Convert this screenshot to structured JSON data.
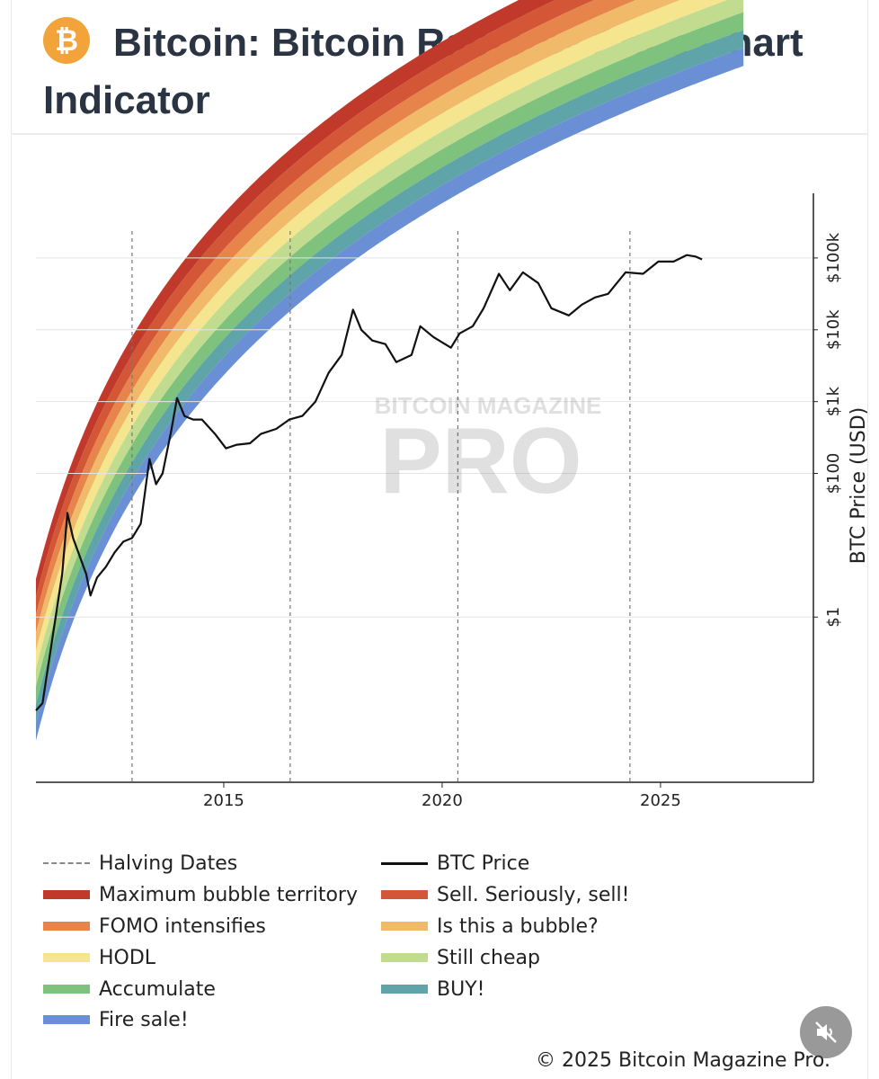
{
  "header": {
    "title": "Bitcoin: Bitcoin Rainbow Price Chart Indicator",
    "logo_icon": "bitcoin-logo-icon"
  },
  "chart_data": {
    "type": "line",
    "title": "Bitcoin Rainbow Price Chart Indicator",
    "xlabel": "",
    "ylabel": "BTC Price (USD)",
    "y_scale": "log",
    "xlim": [
      2010.7,
      2028.5
    ],
    "ylim_log10": [
      -2.3,
      5.9
    ],
    "x_ticks": [
      {
        "value": 2015,
        "label": "2015"
      },
      {
        "value": 2020,
        "label": "2020"
      },
      {
        "value": 2025,
        "label": "2025"
      }
    ],
    "y_ticks": [
      {
        "log10": 0,
        "label": "$1"
      },
      {
        "log10": 2,
        "label": "$100"
      },
      {
        "log10": 3,
        "label": "$1k"
      },
      {
        "log10": 4,
        "label": "$10k"
      },
      {
        "log10": 5,
        "label": "$100k"
      }
    ],
    "halving_dates": [
      2012.9,
      2016.52,
      2020.36,
      2024.3
    ],
    "bands": [
      {
        "name": "Maximum bubble territory",
        "color": "#c0392b"
      },
      {
        "name": "Sell. Seriously, sell!",
        "color": "#d35637"
      },
      {
        "name": "FOMO intensifies",
        "color": "#e6844b"
      },
      {
        "name": "Is this a bubble?",
        "color": "#f0ba6a"
      },
      {
        "name": "HODL",
        "color": "#f5e58f"
      },
      {
        "name": "Still cheap",
        "color": "#c2dc8f"
      },
      {
        "name": "Accumulate",
        "color": "#7fc27d"
      },
      {
        "name": "BUY!",
        "color": "#5ea4a8"
      },
      {
        "name": "Fire sale!",
        "color": "#6a8fd4"
      }
    ],
    "series": [
      {
        "name": "BTC Price",
        "color": "#111111",
        "points": [
          [
            2010.7,
            -1.3
          ],
          [
            2010.85,
            -1.2
          ],
          [
            2011.0,
            -0.6
          ],
          [
            2011.15,
            0.0
          ],
          [
            2011.3,
            0.6
          ],
          [
            2011.42,
            1.45
          ],
          [
            2011.55,
            1.1
          ],
          [
            2011.7,
            0.85
          ],
          [
            2011.85,
            0.6
          ],
          [
            2011.95,
            0.3
          ],
          [
            2012.1,
            0.55
          ],
          [
            2012.3,
            0.7
          ],
          [
            2012.5,
            0.9
          ],
          [
            2012.7,
            1.05
          ],
          [
            2012.9,
            1.1
          ],
          [
            2013.1,
            1.3
          ],
          [
            2013.3,
            2.2
          ],
          [
            2013.45,
            1.85
          ],
          [
            2013.6,
            2.0
          ],
          [
            2013.8,
            2.6
          ],
          [
            2013.93,
            3.05
          ],
          [
            2014.1,
            2.8
          ],
          [
            2014.3,
            2.75
          ],
          [
            2014.5,
            2.75
          ],
          [
            2014.8,
            2.55
          ],
          [
            2015.05,
            2.35
          ],
          [
            2015.3,
            2.4
          ],
          [
            2015.6,
            2.42
          ],
          [
            2015.85,
            2.55
          ],
          [
            2016.2,
            2.62
          ],
          [
            2016.5,
            2.75
          ],
          [
            2016.8,
            2.8
          ],
          [
            2017.1,
            3.0
          ],
          [
            2017.4,
            3.4
          ],
          [
            2017.7,
            3.65
          ],
          [
            2017.96,
            4.28
          ],
          [
            2018.15,
            4.0
          ],
          [
            2018.4,
            3.85
          ],
          [
            2018.7,
            3.8
          ],
          [
            2018.95,
            3.55
          ],
          [
            2019.3,
            3.65
          ],
          [
            2019.5,
            4.05
          ],
          [
            2019.8,
            3.9
          ],
          [
            2020.2,
            3.75
          ],
          [
            2020.4,
            3.95
          ],
          [
            2020.7,
            4.05
          ],
          [
            2020.95,
            4.3
          ],
          [
            2021.3,
            4.78
          ],
          [
            2021.55,
            4.55
          ],
          [
            2021.85,
            4.8
          ],
          [
            2022.2,
            4.65
          ],
          [
            2022.5,
            4.3
          ],
          [
            2022.9,
            4.2
          ],
          [
            2023.2,
            4.35
          ],
          [
            2023.5,
            4.45
          ],
          [
            2023.8,
            4.5
          ],
          [
            2024.2,
            4.8
          ],
          [
            2024.6,
            4.78
          ],
          [
            2024.95,
            4.95
          ],
          [
            2025.3,
            4.95
          ],
          [
            2025.6,
            5.04
          ],
          [
            2025.8,
            5.02
          ],
          [
            2025.95,
            4.98
          ]
        ]
      }
    ],
    "watermark": [
      "BITCOIN MAGAZINE",
      "PRO"
    ]
  },
  "legend": {
    "halving": "Halving Dates",
    "btc_price": "BTC Price",
    "bands": [
      "Maximum bubble territory",
      "Sell. Seriously, sell!",
      "FOMO intensifies",
      "Is this a bubble?",
      "HODL",
      "Still cheap",
      "Accumulate",
      "BUY!",
      "Fire sale!"
    ]
  },
  "footer": {
    "copyright": "© 2025 Bitcoin Magazine Pro."
  },
  "controls": {
    "mute_icon": "speaker-muted-icon"
  }
}
